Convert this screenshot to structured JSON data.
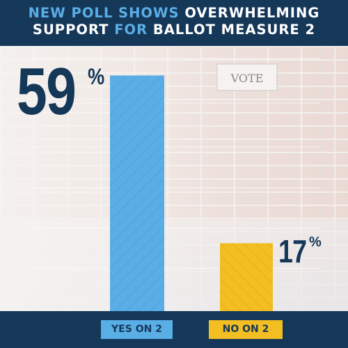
{
  "header": {
    "line1_part1": "NEW POLL SHOWS",
    "line1_part2": "OVERWHELMING",
    "line2_part1": "SUPPORT",
    "line2_part2": "FOR",
    "line2_part3": "BALLOT MEASURE 2"
  },
  "background": {
    "sign_text": "VOTE"
  },
  "colors": {
    "navy": "#153859",
    "blue": "#5aaee6",
    "yellow": "#f2be22"
  },
  "chart_data": {
    "type": "bar",
    "title": "NEW POLL SHOWS OVERWHELMING SUPPORT FOR BALLOT MEASURE 2",
    "categories": [
      "YES ON 2",
      "NO ON 2"
    ],
    "values": [
      59,
      17
    ],
    "value_labels": [
      "59",
      "17"
    ],
    "value_suffix": "%",
    "ylim": [
      0,
      65
    ],
    "grid": true,
    "bar_fill": "hatched",
    "bar_colors": [
      "#5aaee6",
      "#f2be22"
    ]
  }
}
